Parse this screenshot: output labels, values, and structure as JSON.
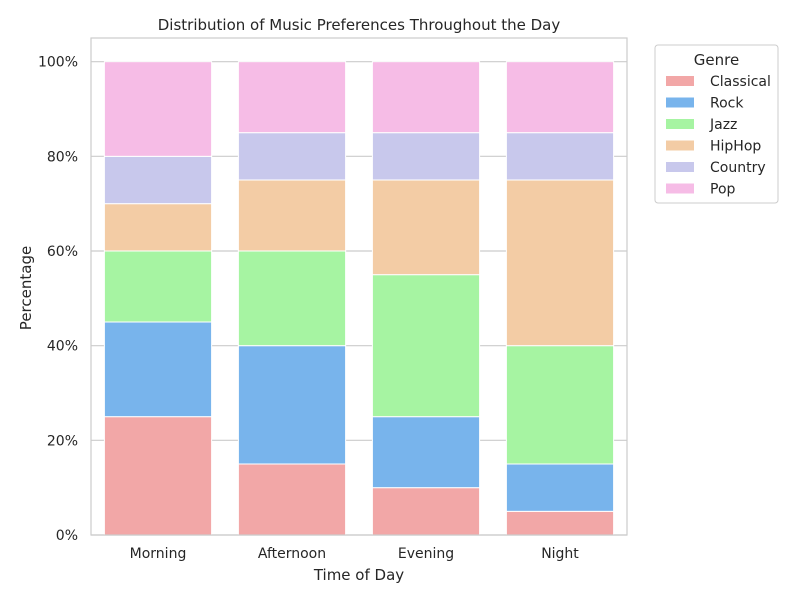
{
  "chart_data": {
    "type": "bar",
    "stacked": true,
    "title": "Distribution of Music Preferences Throughout the Day",
    "xlabel": "Time of Day",
    "ylabel": "Percentage",
    "categories": [
      "Morning",
      "Afternoon",
      "Evening",
      "Night"
    ],
    "ylim": [
      0,
      105
    ],
    "yticks": [
      0,
      20,
      40,
      60,
      80,
      100
    ],
    "ytick_labels": [
      "0%",
      "20%",
      "40%",
      "60%",
      "80%",
      "100%"
    ],
    "grid": true,
    "legend": {
      "title": "Genre",
      "placement": "outside-top-right"
    },
    "series": [
      {
        "name": "Classical",
        "color": "#f2a7a7",
        "values": [
          25,
          15,
          10,
          5
        ]
      },
      {
        "name": "Rock",
        "color": "#78b4ec",
        "values": [
          20,
          25,
          15,
          10
        ]
      },
      {
        "name": "Jazz",
        "color": "#a6f4a2",
        "values": [
          15,
          20,
          30,
          25
        ]
      },
      {
        "name": "HipHop",
        "color": "#f3cca5",
        "values": [
          10,
          15,
          20,
          35
        ]
      },
      {
        "name": "Country",
        "color": "#c8c8ec",
        "values": [
          10,
          10,
          10,
          10
        ]
      },
      {
        "name": "Pop",
        "color": "#f6bce6",
        "values": [
          20,
          15,
          15,
          15
        ]
      }
    ]
  }
}
